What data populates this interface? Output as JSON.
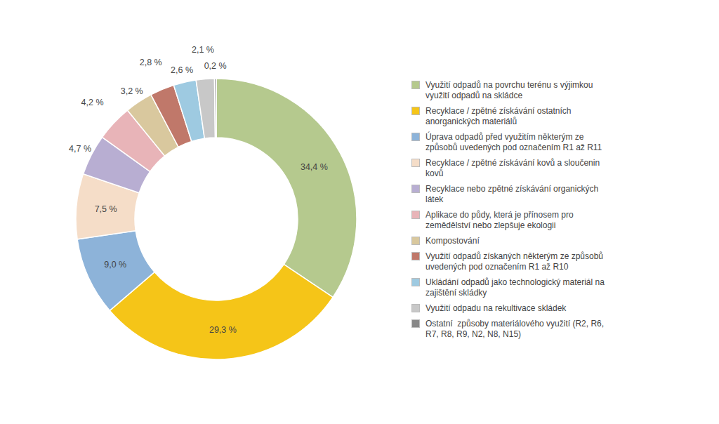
{
  "chart_data": {
    "type": "pie",
    "categories": [
      "Využití odpadů na povrchu terénu s výjimkou\nvyužití odpadů na skládce",
      "Recyklace / zpětné získávání ostatních\nanorganických materiálů",
      "Úprava odpadů před využitím některým ze\nzpůsobů uvedených pod označením R1 až R11",
      "Recyklace / zpětné získávání kovů a sloučenin\nkovů",
      "Recyklace nebo zpětné získávání organických\nlátek",
      "Aplikace do půdy, která je přínosem pro\nzemědělství nebo zlepšuje ekologii",
      "Kompostování",
      "Využití odpadů získaných některým ze způsobů\nuvedených pod označením R1 až R10",
      "Ukládání odpadů jako technologický materiál na\nzajištění skládky",
      "Využití odpadu na rekultivace skládek",
      "Ostatní  způsoby materiálového využití (R2, R6,\nR7, R8, R9, N2, N8, N15)"
    ],
    "values": [
      34.4,
      29.3,
      9.0,
      7.5,
      4.7,
      4.2,
      3.2,
      2.8,
      2.6,
      2.1,
      0.2
    ],
    "value_labels": [
      "34,4 %",
      "29,3 %",
      "9,0 %",
      "7,5 %",
      "4,7 %",
      "4,2 %",
      "3,2 %",
      "2,8 %",
      "2,6 %",
      "2,1 %",
      "0,2 %"
    ],
    "colors": [
      "#b5c98e",
      "#f5c518",
      "#8db3d9",
      "#f5ddc8",
      "#b8aed2",
      "#e8b4b8",
      "#d9c89e",
      "#c0786a",
      "#9ecae1",
      "#c8c8c8",
      "#888888"
    ],
    "data_labels": true,
    "legend": "right"
  }
}
